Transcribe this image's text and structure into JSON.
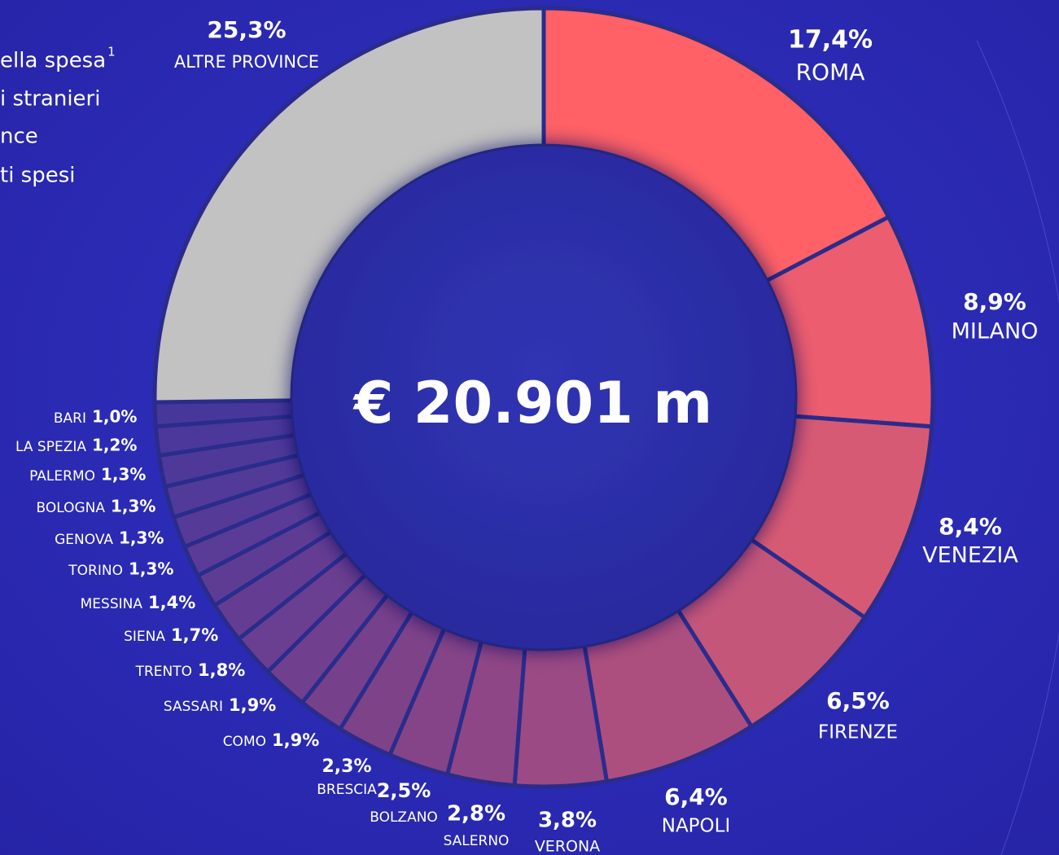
{
  "chart_data": {
    "type": "donut",
    "center_label": "€ 20.901 m",
    "side_text": [
      "ella spesa",
      "i stranieri",
      "nce",
      "ti spesi"
    ],
    "side_text_footnote": "1",
    "categories": [
      "ROMA",
      "MILANO",
      "VENEZIA",
      "FIRENZE",
      "NAPOLI",
      "VERONA",
      "SALERNO",
      "BOLZANO",
      "BRESCIA",
      "COMO",
      "SASSARI",
      "TRENTO",
      "SIENA",
      "MESSINA",
      "TORINO",
      "GENOVA",
      "BOLOGNA",
      "PALERMO",
      "LA SPEZIA",
      "BARI",
      "ALTRE PROVINCE"
    ],
    "values": [
      17.4,
      8.9,
      8.4,
      6.5,
      6.4,
      3.8,
      2.8,
      2.5,
      2.3,
      1.9,
      1.9,
      1.8,
      1.7,
      1.4,
      1.3,
      1.3,
      1.3,
      1.3,
      1.2,
      1.0,
      25.3
    ],
    "value_labels": [
      "17,4%",
      "8,9%",
      "8,4%",
      "6,5%",
      "6,4%",
      "3,8%",
      "2,8%",
      "2,5%",
      "2,3%",
      "1,9%",
      "1,9%",
      "1,8%",
      "1,7%",
      "1,4%",
      "1,3%",
      "1,3%",
      "1,3%",
      "1,3%",
      "1,2%",
      "1,0%",
      "25,3%"
    ],
    "colors": [
      "#ff6166",
      "#ec5d6f",
      "#d75a74",
      "#c4567a",
      "#ad4f7e",
      "#9b4a84",
      "#8f4686",
      "#854488",
      "#7e4289",
      "#77408b",
      "#70408e",
      "#6a3e90",
      "#643d92",
      "#5f3c94",
      "#5a3b96",
      "#563a97",
      "#523a98",
      "#4e3999",
      "#4b389a",
      "#48379b",
      "#c2c2c2"
    ]
  }
}
